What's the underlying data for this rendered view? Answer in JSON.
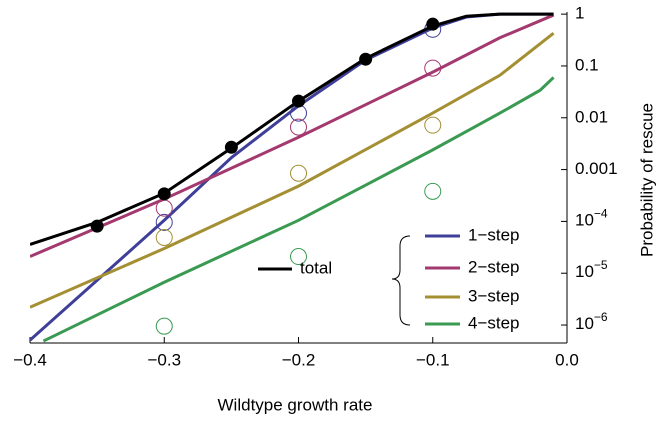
{
  "chart_data": {
    "type": "line",
    "log_y": true,
    "x_label": "Wildtype growth rate",
    "y_label": "Probability of rescue",
    "xlim": [
      -0.4,
      0.0
    ],
    "ylim": [
      4.5e-07,
      1.1
    ],
    "xticks": [
      {
        "value": -0.4,
        "label": "−0.4"
      },
      {
        "value": -0.3,
        "label": "−0.3"
      },
      {
        "value": -0.2,
        "label": "−0.2"
      },
      {
        "value": -0.1,
        "label": "−0.1"
      },
      {
        "value": 0,
        "label": "0.0"
      }
    ],
    "yticks": [
      1,
      0.1,
      0.01,
      0.001,
      {
        "value": 0.0001,
        "base": "10",
        "exponent": "−4"
      },
      {
        "value": 1e-05,
        "base": "10",
        "exponent": "−5"
      },
      {
        "value": 1e-06,
        "base": "10",
        "exponent": "−6"
      }
    ],
    "series": [
      {
        "name": "1−step",
        "color": "#3f3f9a",
        "x": [
          -0.4,
          -0.35,
          -0.3,
          -0.25,
          -0.2,
          -0.15,
          -0.1,
          -0.075,
          -0.05,
          -0.01
        ],
        "values": [
          5.1e-07,
          7.3e-06,
          0.000105,
          0.0017,
          0.017,
          0.13,
          0.54,
          0.88,
          1.0,
          1.0
        ],
        "sim_x": [
          -0.3,
          -0.2,
          -0.1
        ],
        "sim_values": [
          9.6e-05,
          0.0123,
          0.51
        ]
      },
      {
        "name": "2−step",
        "color": "#a3396f",
        "x": [
          -0.4,
          -0.3,
          -0.2,
          -0.1,
          -0.05,
          -0.01
        ],
        "values": [
          2.1e-05,
          0.00027,
          0.0042,
          0.076,
          0.35,
          0.96
        ],
        "sim_x": [
          -0.3,
          -0.2,
          -0.1
        ],
        "sim_values": [
          0.00018,
          0.0066,
          0.091
        ]
      },
      {
        "name": "3−step",
        "color": "#a48f33",
        "x": [
          -0.4,
          -0.3,
          -0.2,
          -0.1,
          -0.05,
          -0.01
        ],
        "values": [
          2.2e-06,
          3e-05,
          0.00048,
          0.0123,
          0.066,
          0.43
        ],
        "sim_x": [
          -0.3,
          -0.2,
          -0.1
        ],
        "sim_values": [
          4.9e-05,
          0.00085,
          0.0072
        ]
      },
      {
        "name": "4−step",
        "color": "#3a9a52",
        "x": [
          -0.39,
          -0.3,
          -0.2,
          -0.1,
          -0.05,
          -0.02,
          -0.01
        ],
        "values": [
          4.9e-07,
          6.7e-06,
          0.000105,
          0.0024,
          0.0123,
          0.034,
          0.06
        ],
        "sim_x": [
          -0.3,
          -0.2,
          -0.1
        ],
        "sim_values": [
          9.5e-07,
          2.1e-05,
          0.00038
        ]
      },
      {
        "name": "total",
        "color": "#000000",
        "x": [
          -0.4,
          -0.35,
          -0.3,
          -0.25,
          -0.2,
          -0.15,
          -0.1,
          -0.075,
          -0.05,
          -0.01
        ],
        "values": [
          3.6e-05,
          9.6e-05,
          0.00035,
          0.0026,
          0.021,
          0.14,
          0.59,
          0.91,
          1.0,
          1.0
        ],
        "sim_x": [
          -0.35,
          -0.3,
          -0.25,
          -0.2,
          -0.15,
          -0.1
        ],
        "sim_values": [
          8.1e-05,
          0.00034,
          0.0027,
          0.021,
          0.135,
          0.64
        ]
      }
    ]
  }
}
